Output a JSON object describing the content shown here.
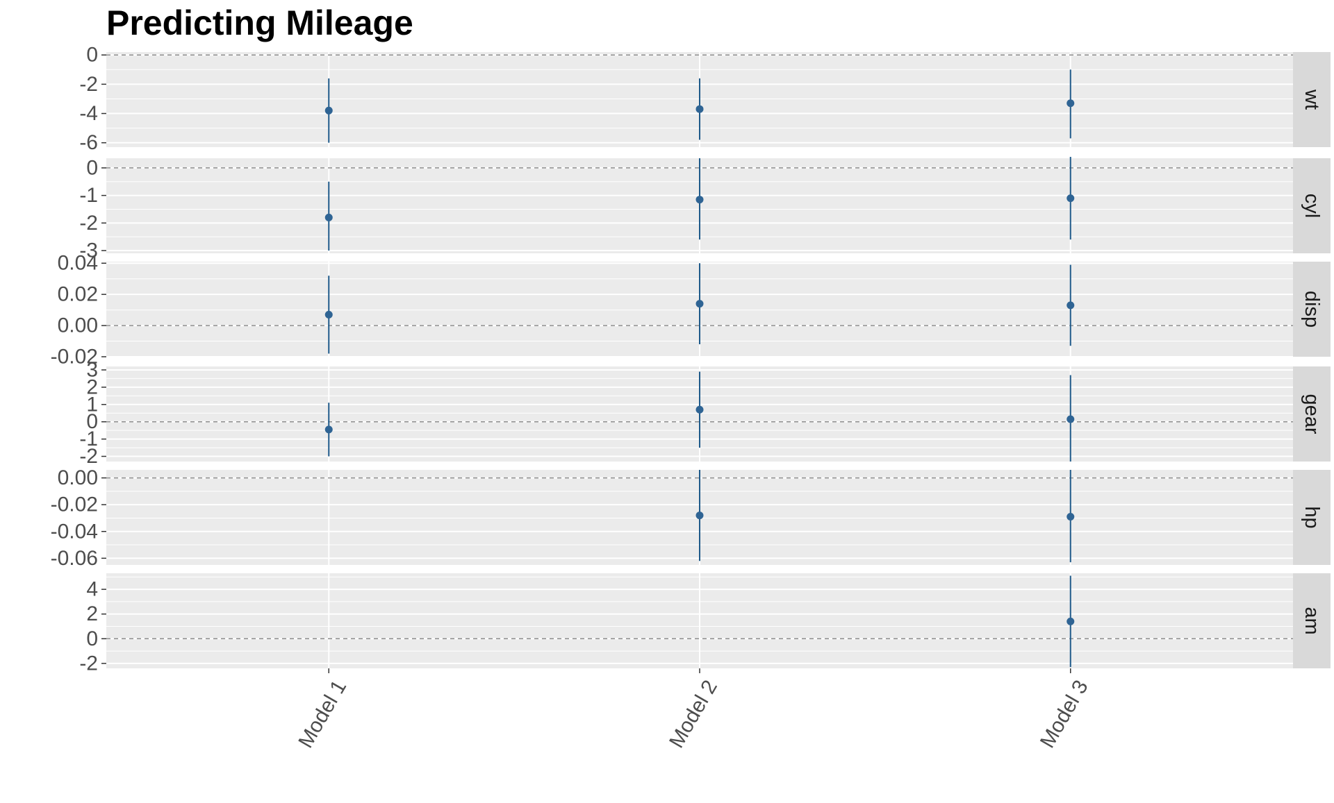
{
  "chart_data": {
    "type": "scatter",
    "title": "Predicting Mileage",
    "xlabel": "",
    "ylabel": "",
    "categories": [
      "Model 1",
      "Model 2",
      "Model 3"
    ],
    "grid": true,
    "colors": {
      "point": "#2f6494",
      "errorbar": "#1f5a8a",
      "panel_background": "#ebebeb",
      "strip_background": "#d9d9d9",
      "gridline": "#ffffff",
      "zero_line": "#8c8c8c",
      "axis_text": "#4d4d4d",
      "strip_text": "#1a1a1a"
    },
    "panels": [
      {
        "strip_label": "wt",
        "ylim": [
          -6.3,
          0.2
        ],
        "yticks": [
          0,
          -2,
          -4,
          -6
        ],
        "ytick_labels": [
          "0",
          "-2",
          "-4",
          "-6"
        ],
        "estimates": [
          {
            "model": "Model 1",
            "estimate": -3.8,
            "lower": -6.0,
            "upper": -1.6
          },
          {
            "model": "Model 2",
            "estimate": -3.7,
            "lower": -5.8,
            "upper": -1.6
          },
          {
            "model": "Model 3",
            "estimate": -3.3,
            "lower": -5.7,
            "upper": -1.0
          }
        ]
      },
      {
        "strip_label": "cyl",
        "ylim": [
          -3.1,
          0.35
        ],
        "yticks": [
          0,
          -1,
          -2,
          -3
        ],
        "ytick_labels": [
          "0",
          "-1",
          "-2",
          "-3"
        ],
        "estimates": [
          {
            "model": "Model 1",
            "estimate": -1.8,
            "lower": -3.0,
            "upper": -0.5
          },
          {
            "model": "Model 2",
            "estimate": -1.15,
            "lower": -2.6,
            "upper": 0.35
          },
          {
            "model": "Model 3",
            "estimate": -1.1,
            "lower": -2.6,
            "upper": 0.4
          }
        ]
      },
      {
        "strip_label": "disp",
        "ylim": [
          -0.02,
          0.041
        ],
        "yticks": [
          0.04,
          0.02,
          0.0,
          -0.02
        ],
        "ytick_labels": [
          "0.04",
          "0.02",
          "0.00",
          "-0.02"
        ],
        "estimates": [
          {
            "model": "Model 1",
            "estimate": 0.007,
            "lower": -0.018,
            "upper": 0.032
          },
          {
            "model": "Model 2",
            "estimate": 0.014,
            "lower": -0.012,
            "upper": 0.04
          },
          {
            "model": "Model 3",
            "estimate": 0.013,
            "lower": -0.013,
            "upper": 0.039
          }
        ]
      },
      {
        "strip_label": "gear",
        "ylim": [
          -2.3,
          3.2
        ],
        "yticks": [
          3,
          2,
          1,
          0,
          -1,
          -2
        ],
        "ytick_labels": [
          "3",
          "2",
          "1",
          "0",
          "-1",
          "-2"
        ],
        "estimates": [
          {
            "model": "Model 1",
            "estimate": -0.45,
            "lower": -2.0,
            "upper": 1.1
          },
          {
            "model": "Model 2",
            "estimate": 0.7,
            "lower": -1.5,
            "upper": 2.9
          },
          {
            "model": "Model 3",
            "estimate": 0.15,
            "lower": -2.3,
            "upper": 2.7
          }
        ]
      },
      {
        "strip_label": "hp",
        "ylim": [
          -0.065,
          0.006
        ],
        "yticks": [
          0.0,
          -0.02,
          -0.04,
          -0.06
        ],
        "ytick_labels": [
          "0.00",
          "-0.02",
          "-0.04",
          "-0.06"
        ],
        "estimates": [
          {
            "model": "Model 2",
            "estimate": -0.028,
            "lower": -0.062,
            "upper": 0.006
          },
          {
            "model": "Model 3",
            "estimate": -0.029,
            "lower": -0.063,
            "upper": 0.006
          }
        ]
      },
      {
        "strip_label": "am",
        "ylim": [
          -2.4,
          5.3
        ],
        "yticks": [
          4,
          2,
          0,
          -2
        ],
        "ytick_labels": [
          "4",
          "2",
          "0",
          "-2"
        ],
        "estimates": [
          {
            "model": "Model 3",
            "estimate": 1.4,
            "lower": -2.3,
            "upper": 5.1
          }
        ]
      }
    ]
  }
}
